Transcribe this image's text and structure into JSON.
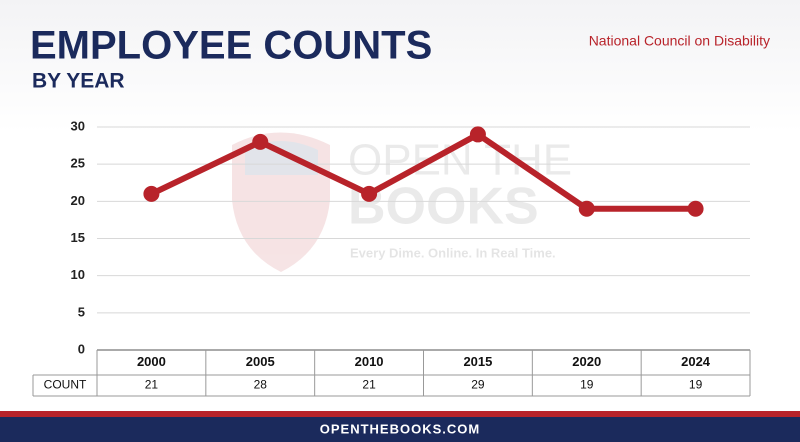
{
  "chart_data": {
    "type": "line",
    "title": "EMPLOYEE COUNTS",
    "subtitle": "BY YEAR",
    "source": "National Council on Disability",
    "categories": [
      "2000",
      "2005",
      "2010",
      "2015",
      "2020",
      "2024"
    ],
    "values": [
      21,
      28,
      21,
      29,
      19,
      19
    ],
    "table_row_label": "COUNT",
    "color": "#b8232a",
    "ylim": [
      0,
      30
    ],
    "yticks": [
      0,
      5,
      10,
      15,
      20,
      25,
      30
    ],
    "grid": true
  },
  "watermark": {
    "line1": "OPEN THE",
    "line2": "BOOKS",
    "tagline": "Every Dime. Online. In Real Time."
  },
  "footer": {
    "text": "OPENTHEBOOKS.COM"
  }
}
